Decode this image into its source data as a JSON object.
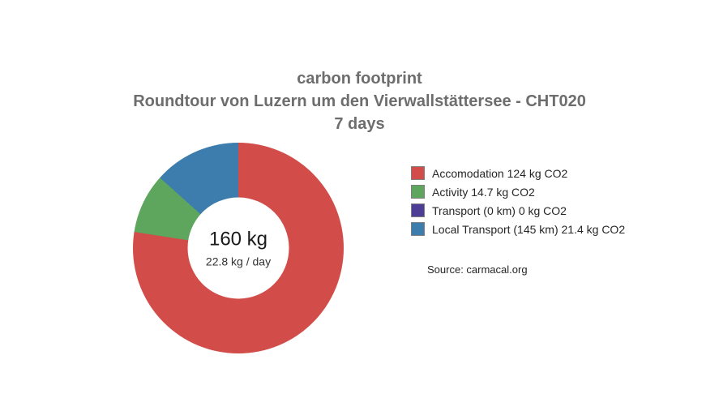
{
  "page": {
    "background": "#ffffff"
  },
  "title": {
    "line1": "carbon footprint",
    "line2": "Roundtour von Luzern um den Vierwallstättersee - CHT020",
    "line3": "7 days",
    "color": "#6d6d6d"
  },
  "center_label": {
    "total": "160 kg",
    "per_day": "22.8 kg / day"
  },
  "source": {
    "text": "Source: carmacal.org"
  },
  "chart_data": {
    "type": "pie",
    "subtype": "donut",
    "title": "carbon footprint — Roundtour von Luzern um den Vierwallstättersee - CHT020 — 7 days",
    "categories": [
      "Accomodation",
      "Activity",
      "Transport (0 km)",
      "Local Transport (145 km)"
    ],
    "values": [
      124,
      14.7,
      0,
      21.4
    ],
    "unit": "kg CO2",
    "total_label": "160 kg",
    "per_day_label": "22.8 kg / day",
    "total": 160,
    "per_day": 22.8,
    "colors": [
      "#d24d49",
      "#5ea55e",
      "#4d3d95",
      "#3d7dad"
    ],
    "start_angle_deg": 0,
    "direction": "clockwise",
    "legend_position": "right",
    "legend": [
      {
        "label": "Accomodation 124 kg CO2",
        "color": "#d24d49"
      },
      {
        "label": "Activity 14.7 kg CO2",
        "color": "#5ea55e"
      },
      {
        "label": "Transport (0 km) 0 kg CO2",
        "color": "#4d3d95"
      },
      {
        "label": "Local Transport (145 km) 21.4 kg CO2",
        "color": "#3d7dad"
      }
    ]
  }
}
